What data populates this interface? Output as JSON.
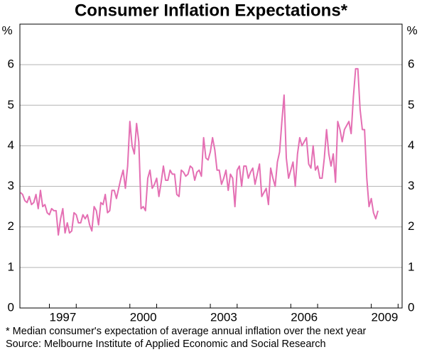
{
  "chart_data": {
    "type": "line",
    "title": "Consumer Inflation Expectations*",
    "y_unit_left": "%",
    "y_unit_right": "%",
    "footnote": "*  Median consumer's expectation of average annual inflation over the next year",
    "source": "Source: Melbourne Institute of Applied Economic and Social Research",
    "xlim": [
      1995.9,
      2010.15
    ],
    "xticks": [
      {
        "value": 1997.5,
        "label": "1997"
      },
      {
        "value": 2000.5,
        "label": "2000"
      },
      {
        "value": 2003.5,
        "label": "2003"
      },
      {
        "value": 2006.5,
        "label": "2006"
      },
      {
        "value": 2009.5,
        "label": "2009"
      }
    ],
    "ylim": [
      0,
      7
    ],
    "yticks": [
      0,
      1,
      2,
      3,
      4,
      5,
      6
    ],
    "grid": true,
    "x": [
      1995.917,
      1996.0,
      1996.083,
      1996.167,
      1996.25,
      1996.333,
      1996.417,
      1996.5,
      1996.583,
      1996.667,
      1996.75,
      1996.833,
      1996.917,
      1997.0,
      1997.083,
      1997.167,
      1997.25,
      1997.333,
      1997.417,
      1997.5,
      1997.583,
      1997.667,
      1997.75,
      1997.833,
      1997.917,
      1998.0,
      1998.083,
      1998.167,
      1998.25,
      1998.333,
      1998.417,
      1998.5,
      1998.583,
      1998.667,
      1998.75,
      1998.833,
      1998.917,
      1999.0,
      1999.083,
      1999.167,
      1999.25,
      1999.333,
      1999.417,
      1999.5,
      1999.583,
      1999.667,
      1999.75,
      1999.833,
      1999.917,
      2000.0,
      2000.083,
      2000.167,
      2000.25,
      2000.333,
      2000.417,
      2000.5,
      2000.583,
      2000.667,
      2000.75,
      2000.833,
      2000.917,
      2001.0,
      2001.083,
      2001.167,
      2001.25,
      2001.333,
      2001.417,
      2001.5,
      2001.583,
      2001.667,
      2001.75,
      2001.833,
      2001.917,
      2002.0,
      2002.083,
      2002.167,
      2002.25,
      2002.333,
      2002.417,
      2002.5,
      2002.583,
      2002.667,
      2002.75,
      2002.833,
      2002.917,
      2003.0,
      2003.083,
      2003.167,
      2003.25,
      2003.333,
      2003.417,
      2003.5,
      2003.583,
      2003.667,
      2003.75,
      2003.833,
      2003.917,
      2004.0,
      2004.083,
      2004.167,
      2004.25,
      2004.333,
      2004.417,
      2004.5,
      2004.583,
      2004.667,
      2004.75,
      2004.833,
      2004.917,
      2005.0,
      2005.083,
      2005.167,
      2005.25,
      2005.333,
      2005.417,
      2005.5,
      2005.583,
      2005.667,
      2005.75,
      2005.833,
      2005.917,
      2006.0,
      2006.083,
      2006.167,
      2006.25,
      2006.333,
      2006.417,
      2006.5,
      2006.583,
      2006.667,
      2006.75,
      2006.833,
      2006.917,
      2007.0,
      2007.083,
      2007.167,
      2007.25,
      2007.333,
      2007.417,
      2007.5,
      2007.583,
      2007.667,
      2007.75,
      2007.833,
      2007.917,
      2008.0,
      2008.083,
      2008.167,
      2008.25,
      2008.333,
      2008.417,
      2008.5,
      2008.583,
      2008.667,
      2008.75,
      2008.833,
      2008.917,
      2009.0,
      2009.083,
      2009.167,
      2009.25
    ],
    "series": [
      {
        "color": "#e46fb3",
        "values": [
          2.85,
          2.8,
          2.65,
          2.6,
          2.75,
          2.55,
          2.6,
          2.8,
          2.45,
          2.9,
          2.5,
          2.55,
          2.35,
          2.3,
          2.45,
          2.4,
          2.4,
          1.8,
          2.2,
          2.45,
          1.85,
          2.1,
          1.85,
          1.9,
          2.35,
          2.3,
          2.1,
          2.1,
          2.3,
          2.2,
          2.3,
          2.05,
          1.9,
          2.5,
          2.4,
          2.05,
          2.6,
          2.55,
          2.8,
          2.35,
          2.4,
          2.9,
          2.9,
          2.7,
          2.95,
          3.2,
          3.4,
          2.95,
          3.5,
          4.6,
          4.0,
          3.8,
          4.55,
          4.1,
          2.45,
          2.5,
          2.4,
          3.2,
          3.4,
          2.95,
          3.05,
          3.2,
          2.75,
          3.1,
          3.5,
          3.15,
          3.15,
          3.4,
          3.3,
          3.3,
          2.8,
          2.75,
          3.4,
          3.35,
          3.25,
          3.3,
          3.5,
          3.45,
          3.15,
          3.35,
          3.4,
          3.25,
          4.2,
          3.7,
          3.65,
          3.85,
          4.2,
          3.9,
          3.4,
          3.4,
          3.05,
          3.2,
          3.4,
          2.9,
          3.3,
          3.2,
          2.5,
          3.4,
          3.5,
          3.0,
          3.5,
          3.5,
          3.2,
          3.35,
          3.45,
          3.05,
          3.3,
          3.55,
          2.75,
          2.85,
          2.95,
          2.55,
          3.45,
          3.2,
          3.0,
          3.6,
          3.85,
          4.6,
          5.25,
          3.7,
          3.2,
          3.4,
          3.6,
          3.0,
          3.8,
          4.2,
          4.0,
          4.1,
          4.2,
          3.55,
          3.45,
          4.0,
          3.4,
          3.5,
          3.2,
          3.2,
          3.7,
          4.4,
          3.8,
          3.5,
          3.8,
          3.1,
          4.6,
          4.4,
          4.1,
          4.4,
          4.5,
          4.6,
          4.3,
          5.2,
          5.9,
          5.9,
          4.9,
          4.4,
          4.4,
          3.2,
          2.5,
          2.7,
          2.35,
          2.2,
          2.4
        ]
      }
    ]
  }
}
